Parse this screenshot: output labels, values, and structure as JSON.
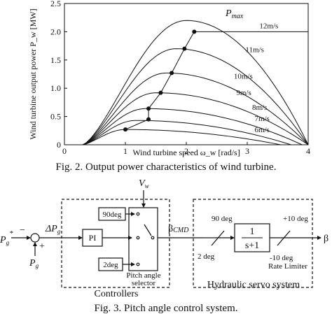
{
  "chart_data": {
    "type": "line",
    "xlabel": "Wind turbine speed ω_w [rad/s]",
    "ylabel": "Wind turbine output power P_w [MW]",
    "xlim": [
      0,
      4
    ],
    "ylim": [
      0,
      2.5
    ],
    "x_ticks": [
      "0",
      "1",
      "2",
      "3",
      "4"
    ],
    "y_ticks": [
      "0",
      "0.5",
      "1.0",
      "1.5",
      "2.0",
      "2.5"
    ],
    "series": [
      {
        "name": "6m/s",
        "peak_x": 1.0,
        "peak_y": 0.27,
        "end_x": 3.55
      },
      {
        "name": "7m/s",
        "peak_x": 1.17,
        "peak_y": 0.43,
        "end_x": 3.72
      },
      {
        "name": "8m/s",
        "peak_x": 1.33,
        "peak_y": 0.64,
        "end_x": 3.9
      },
      {
        "name": "9m/s",
        "peak_x": 1.5,
        "peak_y": 0.92,
        "end_x": 4.0
      },
      {
        "name": "10m/s",
        "peak_x": 1.67,
        "peak_y": 1.27,
        "end_x": 4.0
      },
      {
        "name": "11m/s",
        "peak_x": 1.83,
        "peak_y": 1.7,
        "end_x": 4.0
      },
      {
        "name": "12m/s",
        "peak_x": 2.0,
        "peak_y": 2.2,
        "end_x": 4.0
      }
    ],
    "mpp_points": [
      {
        "x": 1.0,
        "y": 0.27
      },
      {
        "x": 1.38,
        "y": 0.45
      },
      {
        "x": 1.38,
        "y": 0.64
      },
      {
        "x": 1.58,
        "y": 0.92
      },
      {
        "x": 1.76,
        "y": 1.27
      },
      {
        "x": 1.97,
        "y": 1.7
      },
      {
        "x": 2.13,
        "y": 2.0
      }
    ],
    "pmax": {
      "label": "P",
      "sub": "max",
      "value": 2.0
    }
  },
  "fig2_caption": "Fig. 2.    Output power characteristics of wind turbine.",
  "fig3": {
    "vw": {
      "main": "V",
      "sub": "w"
    },
    "pg_star": {
      "main": "P",
      "sub": "g",
      "sup": "*"
    },
    "pg": {
      "main": "P",
      "sub": "g"
    },
    "delta_pg": {
      "main": "ΔP",
      "sub": "g"
    },
    "minus": "−",
    "plus": "+",
    "pi_label": "PI",
    "deg90": "90deg",
    "deg2": "2deg",
    "selector_label_1": "Pitch angle",
    "selector_label_2": "selector",
    "beta_cmd": {
      "main": "β",
      "sub": "CMD"
    },
    "ninety_deg": "90 deg",
    "two_deg": "2 deg",
    "tf_num": "1",
    "tf_den": "s+1",
    "plus10": "+10 deg",
    "minus10": "-10 deg",
    "rate_limiter": "Rate Limiter",
    "beta_out": "β",
    "controllers": "Controllers",
    "hydraulic": "Hydraulic servo system"
  },
  "fig3_caption": "Fig. 3.    Pitch angle control system."
}
